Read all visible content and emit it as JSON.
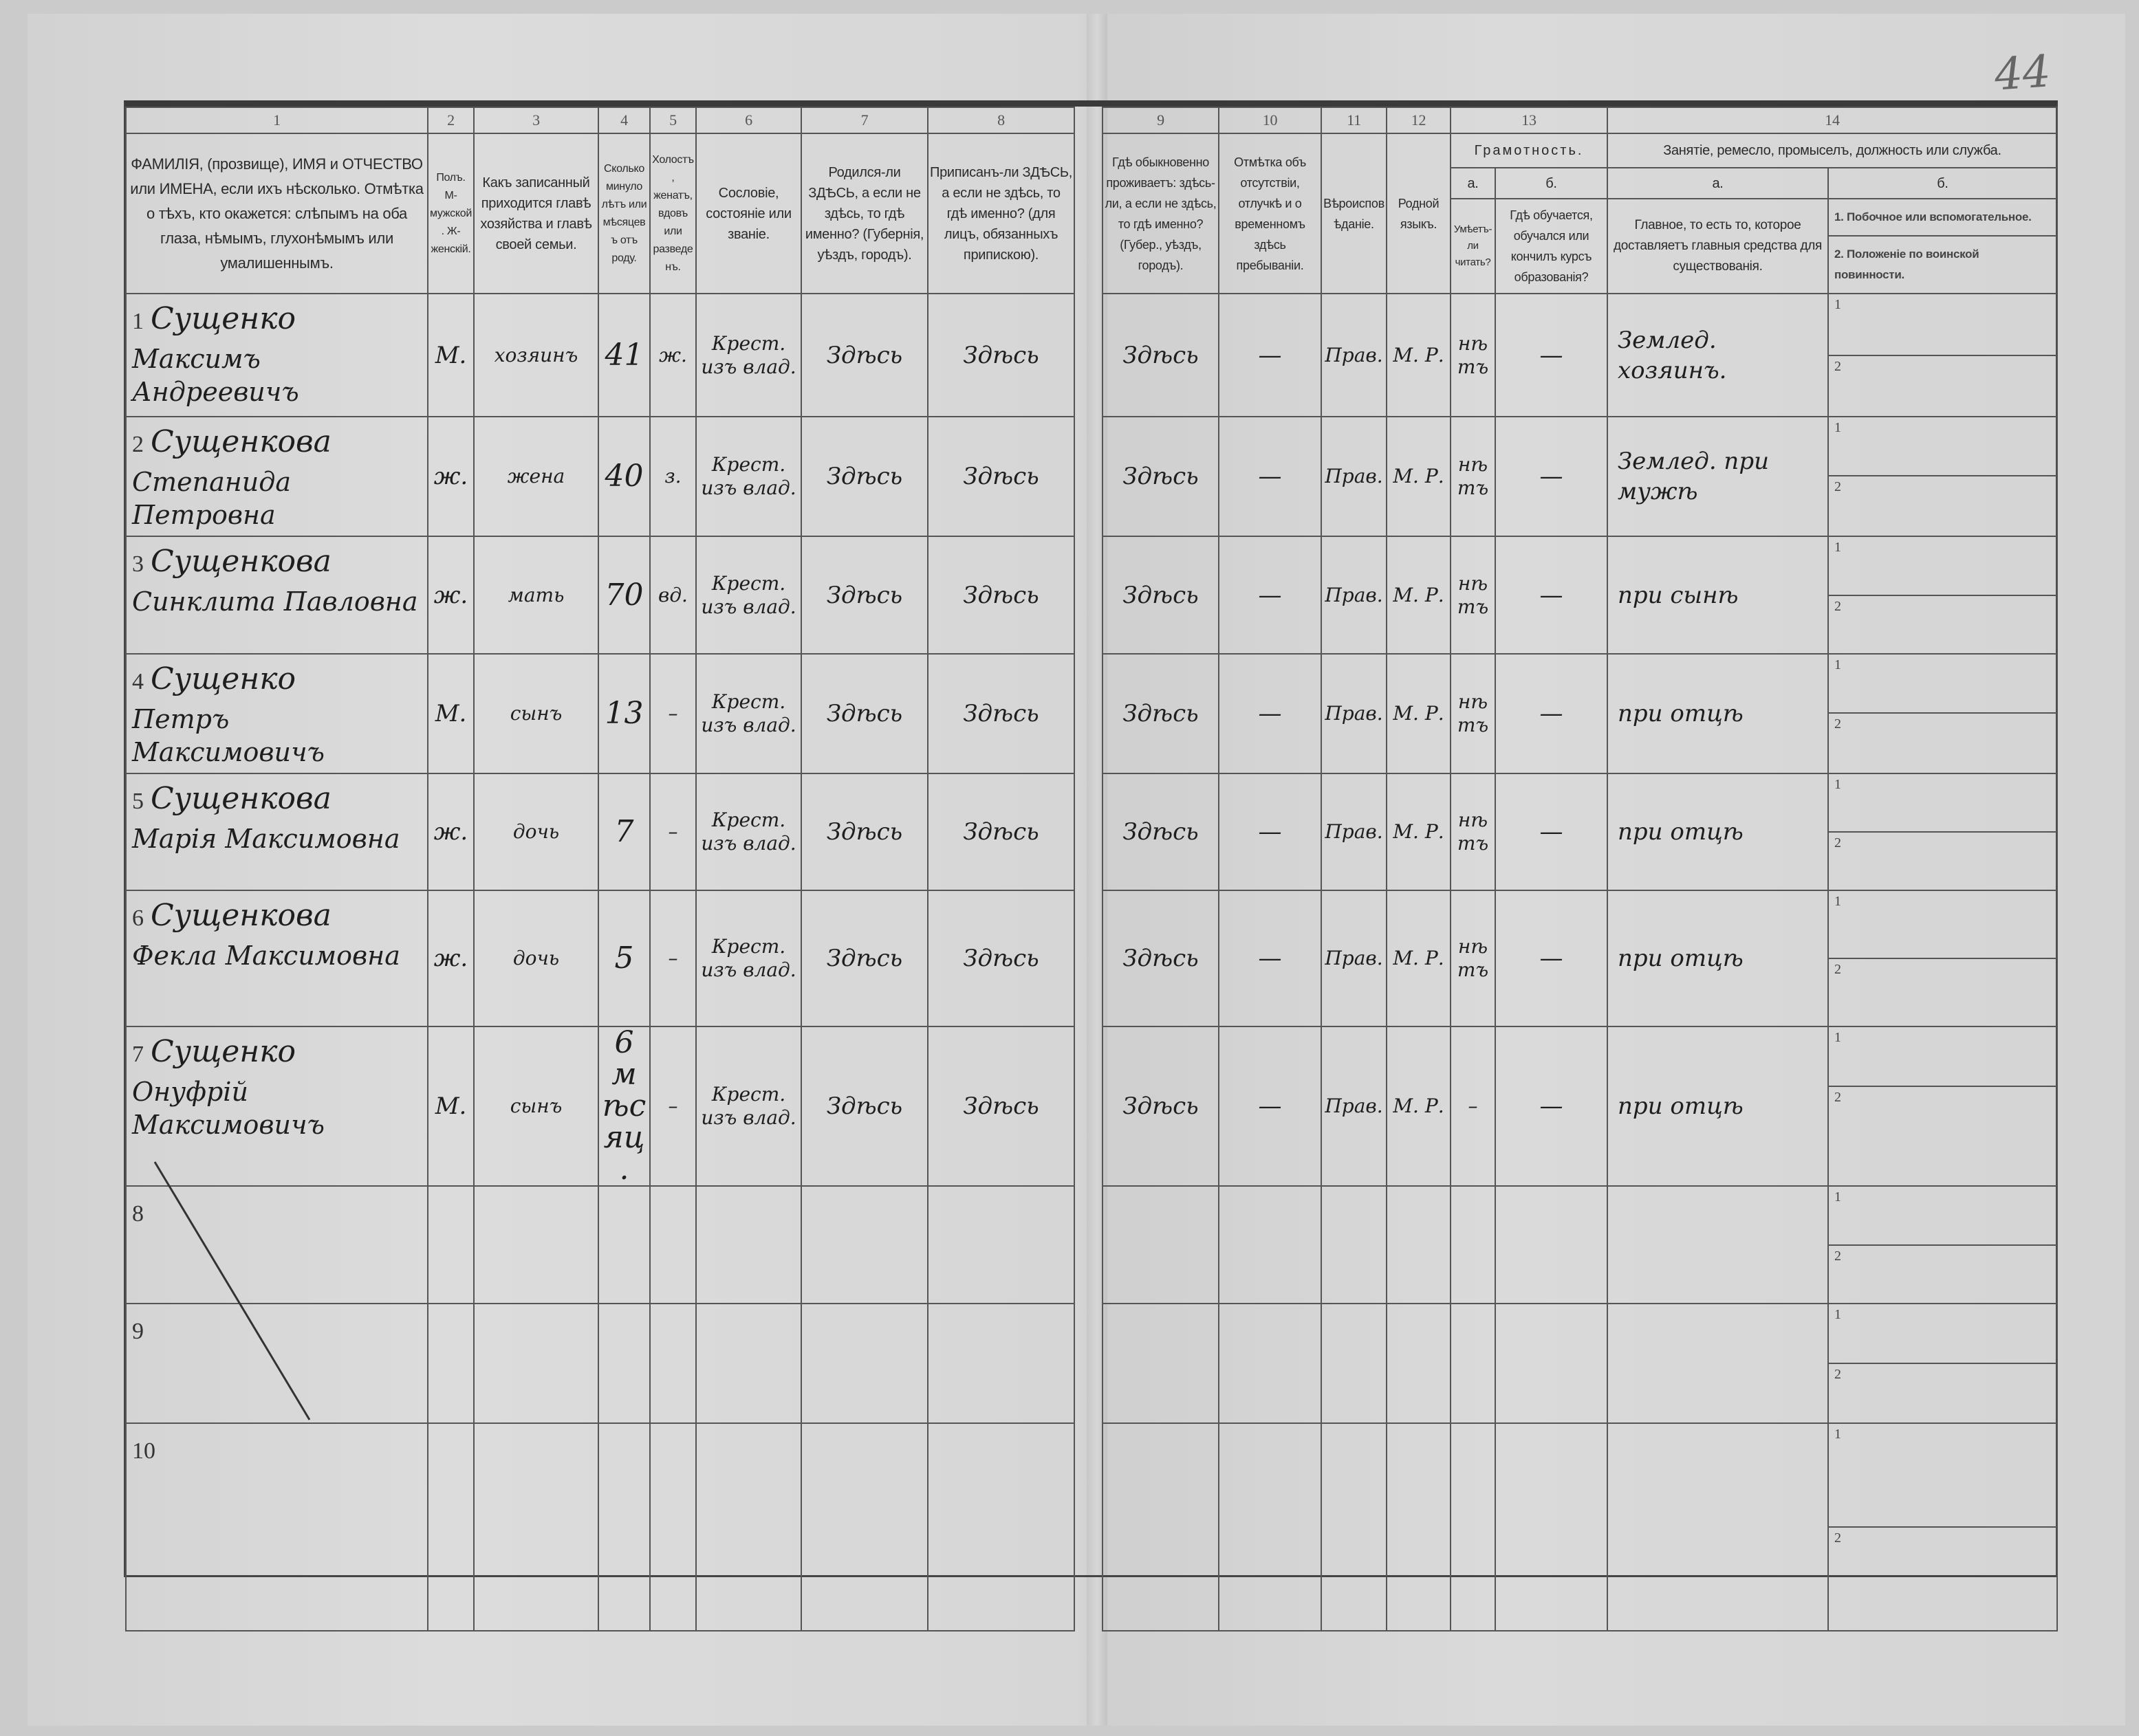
{
  "page_number": "44",
  "header": {
    "col_numbers": [
      "1",
      "2",
      "3",
      "4",
      "5",
      "6",
      "7",
      "8",
      "9",
      "10",
      "11",
      "12",
      "13",
      "14"
    ],
    "c1": "ФАМИЛІЯ, (прозвище), ИМЯ и ОТЧЕСТВО или ИМЕНА, если ихъ нѣсколько. Отмѣтка о тѣхъ, кто окажется: слѣпымъ на оба глаза, нѣмымъ, глухонѣмымъ или умалишеннымъ.",
    "c2": "Полъ. М-мужской. Ж-женскій.",
    "c3": "Какъ записанный приходится главѣ хозяйства и главѣ своей семьи.",
    "c4": "Сколько минуло лѣтъ или мѣсяцевъ отъ роду.",
    "c5": "Холостъ, женатъ, вдовъ или разведенъ.",
    "c6": "Сословіе, состояніе или званіе.",
    "c7": "Родился-ли ЗДѢСЬ, а если не здѣсь, то гдѣ именно? (Губернія, уѣздъ, городъ).",
    "c8": "Приписанъ-ли ЗДѢСЬ, а если не здѣсь, то гдѣ именно? (для лицъ, обязанныхъ припискою).",
    "c9": "Гдѣ обыкновенно проживаетъ: здѣсь-ли, а если не здѣсь, то гдѣ именно? (Губер., уѣздъ, городъ).",
    "c10": "Отмѣтка объ отсутствіи, отлучкѣ и о временномъ здѣсь пребываніи.",
    "c11": "Вѣроисповѣданіе.",
    "c12": "Родной языкъ.",
    "c13_group": "Грамотность.",
    "c13a_letter": "а.",
    "c13b_letter": "б.",
    "c13a": "Умѣетъ-ли читать?",
    "c13b": "Гдѣ обучается, обучался или кончилъ курсъ образованія?",
    "c14_group": "Занятіе, ремесло, промыселъ, должность или служба.",
    "c14a_letter": "а.",
    "c14b_letter": "б.",
    "c14a": "Главное, то есть то, которое доставляетъ главныя средства для существованія.",
    "c14b_1": "1. Побочное или вспомогательное.",
    "c14b_2": "2. Положеніе по воинской повинности."
  },
  "sub_labels": [
    "1",
    "2"
  ],
  "rows": [
    {
      "num": "1",
      "surname": "Сущенко",
      "given": "Максимъ Андреевичъ",
      "sex": "М.",
      "relation": "хозяинъ",
      "age": "41",
      "marital": "ж.",
      "estate": "Крест. изъ влад.",
      "born": "Здѣсь",
      "registered": "Здѣсь",
      "residence": "Здѣсь",
      "absence": "—",
      "religion": "Прав.",
      "language": "М. Р.",
      "literate": "нѣтъ",
      "education": "—",
      "occupation": "Землед. хозяинъ."
    },
    {
      "num": "2",
      "surname": "Сущенкова",
      "given": "Степанида Петровна",
      "sex": "ж.",
      "relation": "жена",
      "age": "40",
      "marital": "з.",
      "estate": "Крест. изъ влад.",
      "born": "Здѣсь",
      "registered": "Здѣсь",
      "residence": "Здѣсь",
      "absence": "—",
      "religion": "Прав.",
      "language": "М. Р.",
      "literate": "нѣтъ",
      "education": "—",
      "occupation": "Землед. при мужѣ"
    },
    {
      "num": "3",
      "surname": "Сущенкова",
      "given": "Синклита Павловна",
      "sex": "ж.",
      "relation": "мать",
      "age": "70",
      "marital": "вд.",
      "estate": "Крест. изъ влад.",
      "born": "Здѣсь",
      "registered": "Здѣсь",
      "residence": "Здѣсь",
      "absence": "—",
      "religion": "Прав.",
      "language": "М. Р.",
      "literate": "нѣтъ",
      "education": "—",
      "occupation": "при сынѣ"
    },
    {
      "num": "4",
      "surname": "Сущенко",
      "given": "Петръ Максимовичъ",
      "sex": "М.",
      "relation": "сынъ",
      "age": "13",
      "marital": "–",
      "estate": "Крест. изъ влад.",
      "born": "Здѣсь",
      "registered": "Здѣсь",
      "residence": "Здѣсь",
      "absence": "—",
      "religion": "Прав.",
      "language": "М. Р.",
      "literate": "нѣтъ",
      "education": "—",
      "occupation": "при отцѣ"
    },
    {
      "num": "5",
      "surname": "Сущенкова",
      "given": "Марія Максимовна",
      "sex": "ж.",
      "relation": "дочь",
      "age": "7",
      "marital": "–",
      "estate": "Крест. изъ влад.",
      "born": "Здѣсь",
      "registered": "Здѣсь",
      "residence": "Здѣсь",
      "absence": "—",
      "religion": "Прав.",
      "language": "М. Р.",
      "literate": "нѣтъ",
      "education": "—",
      "occupation": "при отцѣ"
    },
    {
      "num": "6",
      "surname": "Сущенкова",
      "given": "Фекла Максимовна",
      "sex": "ж.",
      "relation": "дочь",
      "age": "5",
      "marital": "–",
      "estate": "Крест. изъ влад.",
      "born": "Здѣсь",
      "registered": "Здѣсь",
      "residence": "Здѣсь",
      "absence": "—",
      "religion": "Прав.",
      "language": "М. Р.",
      "literate": "нѣтъ",
      "education": "—",
      "occupation": "при отцѣ"
    },
    {
      "num": "7",
      "surname": "Сущенко",
      "given": "Онуфрій Максимовичъ",
      "sex": "М.",
      "relation": "сынъ",
      "age": "6 мѣсяц.",
      "marital": "–",
      "estate": "Крест. изъ влад.",
      "born": "Здѣсь",
      "registered": "Здѣсь",
      "residence": "Здѣсь",
      "absence": "—",
      "religion": "Прав.",
      "language": "М. Р.",
      "literate": "–",
      "education": "—",
      "occupation": "при отцѣ"
    },
    {
      "num": "8"
    },
    {
      "num": "9"
    },
    {
      "num": "10"
    }
  ]
}
